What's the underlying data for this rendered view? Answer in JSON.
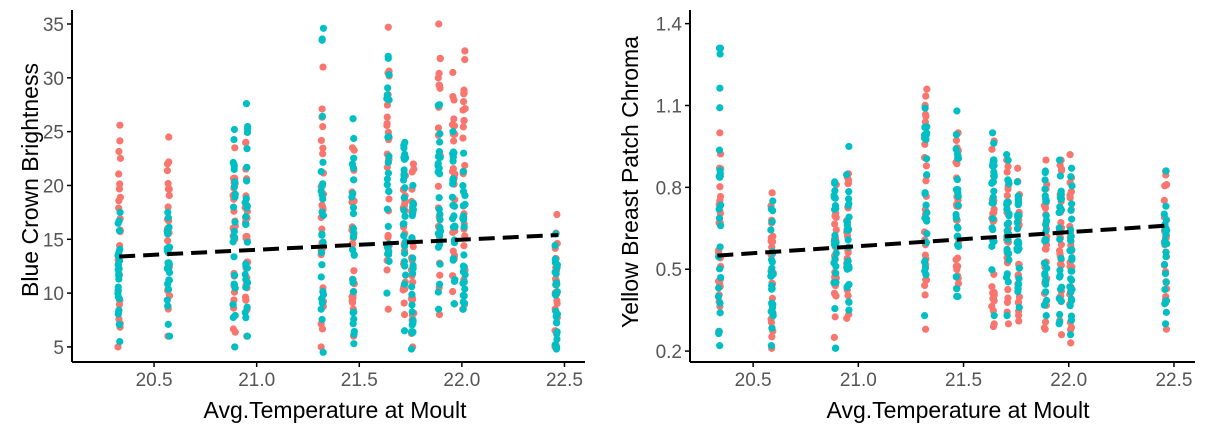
{
  "colors": {
    "series_a": "#F8766D",
    "series_b": "#00BFC4",
    "trend": "#000000",
    "axis": "#000000",
    "tick_text": "#555555"
  },
  "chart_data": [
    {
      "type": "scatter",
      "title": "",
      "xlabel": "Avg.Temperature at Moult",
      "ylabel": "Blue Crown Brightness",
      "xlim": [
        20.1,
        22.6
      ],
      "ylim": [
        3.6,
        36.3
      ],
      "x_ticks": [
        {
          "v": 20.5,
          "label": "20.5"
        },
        {
          "v": 21.0,
          "label": "21.0"
        },
        {
          "v": 21.5,
          "label": "21.5"
        },
        {
          "v": 22.0,
          "label": "22.0"
        },
        {
          "v": 22.5,
          "label": "22.5"
        }
      ],
      "y_ticks": [
        {
          "v": 5,
          "label": "5"
        },
        {
          "v": 10,
          "label": "10"
        },
        {
          "v": 15,
          "label": "15"
        },
        {
          "v": 20,
          "label": "20"
        },
        {
          "v": 25,
          "label": "25"
        },
        {
          "v": 30,
          "label": "30"
        },
        {
          "v": 35,
          "label": "35"
        }
      ],
      "grid": false,
      "legend": "none",
      "trend_line": {
        "style": "dashed",
        "x": [
          20.33,
          22.47
        ],
        "y": [
          13.4,
          15.4
        ]
      },
      "groups": [
        {
          "x": 20.33,
          "coral": [
            5.0,
            25.6
          ],
          "teal": [
            5.5,
            17.5
          ]
        },
        {
          "x": 20.57,
          "coral": [
            6.0,
            24.5
          ],
          "teal": [
            6.0,
            17.5
          ]
        },
        {
          "x": 20.89,
          "coral": [
            5.0,
            23.5
          ],
          "teal": [
            5.0,
            25.2
          ]
        },
        {
          "x": 20.95,
          "coral": [
            6.0,
            24.0
          ],
          "teal": [
            6.0,
            27.6
          ]
        },
        {
          "x": 21.32,
          "coral": [
            5.0,
            31.0
          ],
          "teal": [
            4.5,
            34.6
          ]
        },
        {
          "x": 21.47,
          "coral": [
            6.0,
            23.5
          ],
          "teal": [
            5.3,
            26.2
          ]
        },
        {
          "x": 21.64,
          "coral": [
            8.5,
            34.7
          ],
          "teal": [
            10.0,
            32.0
          ]
        },
        {
          "x": 21.72,
          "coral": [
            8.0,
            21.0
          ],
          "teal": [
            6.5,
            24.0
          ]
        },
        {
          "x": 21.76,
          "coral": [
            5.0,
            22.0
          ],
          "teal": [
            4.8,
            20.0
          ]
        },
        {
          "x": 21.89,
          "coral": [
            8.0,
            35.0
          ],
          "teal": [
            8.5,
            27.5
          ]
        },
        {
          "x": 21.96,
          "coral": [
            9.0,
            30.5
          ],
          "teal": [
            9.0,
            25.0
          ]
        },
        {
          "x": 22.01,
          "coral": [
            8.5,
            32.5
          ],
          "teal": [
            8.5,
            23.0
          ]
        },
        {
          "x": 22.46,
          "coral": [
            5.0,
            17.3
          ],
          "teal": [
            4.8,
            15.5
          ]
        }
      ]
    },
    {
      "type": "scatter",
      "title": "",
      "xlabel": "Avg.Temperature at Moult",
      "ylabel": "Yellow Breast Patch Chroma",
      "xlim": [
        20.2,
        22.6
      ],
      "ylim": [
        0.16,
        1.45
      ],
      "x_ticks": [
        {
          "v": 20.5,
          "label": "20.5"
        },
        {
          "v": 21.0,
          "label": "21.0"
        },
        {
          "v": 21.5,
          "label": "21.5"
        },
        {
          "v": 22.0,
          "label": "22.0"
        },
        {
          "v": 22.5,
          "label": "22.5"
        }
      ],
      "y_ticks": [
        {
          "v": 0.2,
          "label": "0.2"
        },
        {
          "v": 0.5,
          "label": "0.5"
        },
        {
          "v": 0.8,
          "label": "0.8"
        },
        {
          "v": 1.1,
          "label": "1.1"
        },
        {
          "v": 1.4,
          "label": "1.4"
        }
      ],
      "grid": false,
      "legend": "none",
      "trend_line": {
        "style": "dashed",
        "x": [
          20.33,
          22.47
        ],
        "y": [
          0.55,
          0.66
        ]
      },
      "groups": [
        {
          "x": 20.34,
          "coral": [
            0.27,
            1.0
          ],
          "teal": [
            0.22,
            1.31
          ]
        },
        {
          "x": 20.59,
          "coral": [
            0.21,
            0.78
          ],
          "teal": [
            0.22,
            0.75
          ]
        },
        {
          "x": 20.89,
          "coral": [
            0.25,
            0.81
          ],
          "teal": [
            0.21,
            0.82
          ]
        },
        {
          "x": 20.95,
          "coral": [
            0.32,
            0.85
          ],
          "teal": [
            0.35,
            0.95
          ]
        },
        {
          "x": 21.32,
          "coral": [
            0.28,
            1.16
          ],
          "teal": [
            0.33,
            1.09
          ]
        },
        {
          "x": 21.47,
          "coral": [
            0.43,
            1.0
          ],
          "teal": [
            0.4,
            1.08
          ]
        },
        {
          "x": 21.64,
          "coral": [
            0.29,
            0.97
          ],
          "teal": [
            0.33,
            1.0
          ]
        },
        {
          "x": 21.71,
          "coral": [
            0.3,
            0.9
          ],
          "teal": [
            0.33,
            0.92
          ]
        },
        {
          "x": 21.76,
          "coral": [
            0.31,
            0.87
          ],
          "teal": [
            0.36,
            0.82
          ]
        },
        {
          "x": 21.89,
          "coral": [
            0.28,
            0.9
          ],
          "teal": [
            0.33,
            0.86
          ]
        },
        {
          "x": 21.96,
          "coral": [
            0.26,
            0.9
          ],
          "teal": [
            0.3,
            0.9
          ]
        },
        {
          "x": 22.01,
          "coral": [
            0.23,
            0.92
          ],
          "teal": [
            0.26,
            0.87
          ]
        },
        {
          "x": 22.46,
          "coral": [
            0.28,
            0.86
          ],
          "teal": [
            0.3,
            0.86
          ]
        }
      ]
    }
  ]
}
